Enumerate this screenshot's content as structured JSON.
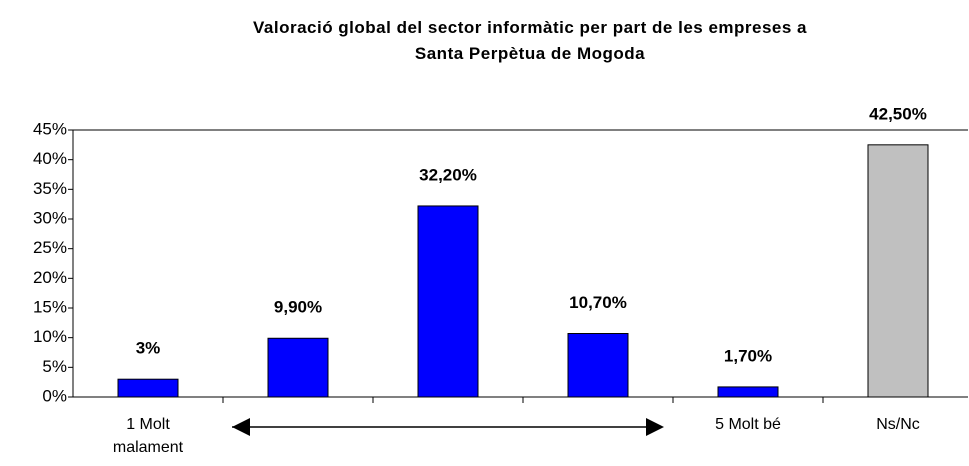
{
  "chart_data": {
    "type": "bar",
    "title": [
      "Valoració global del sector informàtic per part de les empreses a",
      "Santa Perpètua de Mogoda"
    ],
    "categories": [
      "1 Molt malament",
      null,
      null,
      null,
      "5 Molt bé",
      "Ns/Nc"
    ],
    "values": [
      3,
      9.9,
      32.2,
      10.7,
      1.7,
      42.5
    ],
    "value_labels": [
      "3%",
      "9,90%",
      "32,20%",
      "10,70%",
      "1,70%",
      "42,50%"
    ],
    "colors": [
      "#0000ff",
      "#0000ff",
      "#0000ff",
      "#0000ff",
      "#0000ff",
      "#c0c0c0"
    ],
    "ylim": [
      0,
      45
    ],
    "yticks": [
      {
        "value": 0,
        "label": "0%"
      },
      {
        "value": 5,
        "label": "5%"
      },
      {
        "value": 10,
        "label": "10%"
      },
      {
        "value": 15,
        "label": "15%"
      },
      {
        "value": 20,
        "label": "20%"
      },
      {
        "value": 25,
        "label": "25%"
      },
      {
        "value": 30,
        "label": "30%"
      },
      {
        "value": 35,
        "label": "35%"
      },
      {
        "value": 40,
        "label": "40%"
      },
      {
        "value": 45,
        "label": "45%"
      }
    ],
    "grid": false
  }
}
